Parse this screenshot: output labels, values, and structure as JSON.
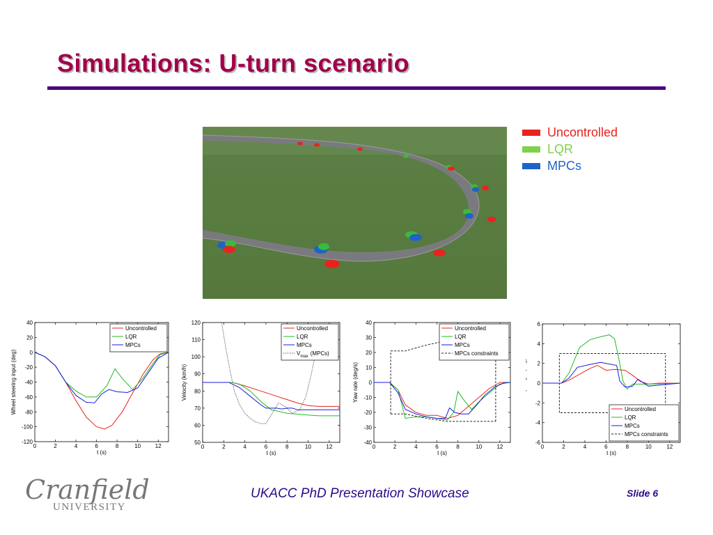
{
  "slide": {
    "title": "Simulations: U-turn scenario",
    "footer_text": "UKACC PhD Presentation Showcase",
    "slide_number": "Slide 6",
    "logo_text": "Cranfield",
    "logo_subtext": "UNIVERSITY",
    "title_color": "#a0004a",
    "rule_color": "#4c0080"
  },
  "sim_legend": [
    {
      "label": "Uncontrolled",
      "color": "#e8231e"
    },
    {
      "label": "LQR",
      "color": "#7fd14a"
    },
    {
      "label": "MPCs",
      "color": "#1e63c8"
    }
  ],
  "chart_data": [
    {
      "type": "line",
      "xlabel": "t (s)",
      "ylabel": "Wheel steering input (deg)",
      "xlim": [
        0,
        13
      ],
      "ylim": [
        -120,
        40
      ],
      "xticks": [
        0,
        2,
        4,
        6,
        8,
        10,
        12
      ],
      "yticks": [
        -120,
        -100,
        -80,
        -60,
        -40,
        -20,
        0,
        20,
        40
      ],
      "legend_position": "top-right",
      "series": [
        {
          "name": "Uncontrolled",
          "color": "#e8231e",
          "style": "solid",
          "x": [
            0,
            1,
            2,
            3,
            4,
            5,
            6,
            6.8,
            7.5,
            8.5,
            9.5,
            10.5,
            11.5,
            12.2,
            13
          ],
          "y": [
            0,
            -6,
            -18,
            -40,
            -65,
            -87,
            -100,
            -103,
            -98,
            -80,
            -55,
            -30,
            -10,
            -2,
            0
          ]
        },
        {
          "name": "LQR",
          "color": "#22bb22",
          "style": "solid",
          "x": [
            0,
            1,
            2,
            3,
            4,
            5,
            6,
            7,
            7.8,
            8.5,
            9.5,
            10.5,
            11.5,
            12.2,
            13
          ],
          "y": [
            0,
            -6,
            -18,
            -40,
            -52,
            -60,
            -60,
            -45,
            -22,
            -35,
            -50,
            -35,
            -15,
            -3,
            0
          ]
        },
        {
          "name": "MPCs",
          "color": "#1a1ae0",
          "style": "solid",
          "x": [
            0,
            1,
            2,
            3,
            4,
            5,
            5.8,
            6.5,
            7.2,
            8,
            9,
            10,
            11,
            12,
            13
          ],
          "y": [
            0,
            -6,
            -18,
            -40,
            -58,
            -67,
            -68,
            -56,
            -50,
            -53,
            -54,
            -48,
            -28,
            -8,
            0
          ]
        }
      ]
    },
    {
      "type": "line",
      "xlabel": "t (s)",
      "ylabel": "Velocity (km/h)",
      "xlim": [
        0,
        13
      ],
      "ylim": [
        50,
        120
      ],
      "xticks": [
        0,
        2,
        4,
        6,
        8,
        10,
        12
      ],
      "yticks": [
        50,
        60,
        70,
        80,
        90,
        100,
        110,
        120
      ],
      "legend_position": "top-right",
      "series": [
        {
          "name": "Uncontrolled",
          "color": "#e8231e",
          "style": "solid",
          "x": [
            0,
            2.8,
            4,
            5,
            6,
            7,
            8,
            9,
            10,
            11,
            12,
            13
          ],
          "y": [
            85,
            85,
            83,
            81,
            79,
            77,
            75,
            73,
            71.5,
            71,
            71,
            71
          ]
        },
        {
          "name": "LQR",
          "color": "#22bb22",
          "style": "solid",
          "x": [
            0,
            2.8,
            3.5,
            4.5,
            5.5,
            6.5,
            7.3,
            8,
            9,
            10,
            11,
            13
          ],
          "y": [
            85,
            85,
            84,
            80,
            74,
            69,
            68,
            67,
            66.5,
            66,
            65.5,
            65.5
          ]
        },
        {
          "name": "MPCs",
          "color": "#1a1ae0",
          "style": "solid",
          "x": [
            0,
            2.5,
            3.5,
            4.5,
            5.5,
            6,
            7,
            7.5,
            8,
            8.5,
            9,
            10,
            11,
            13
          ],
          "y": [
            85,
            85,
            82,
            77,
            72,
            70,
            70,
            69.5,
            70,
            70,
            69,
            69,
            69,
            69
          ]
        },
        {
          "name": "V",
          "legend_sub": "max",
          "legend_suffix": "(MPCs)",
          "color": "#333333",
          "style": "dotted",
          "x": [
            1.8,
            2.2,
            2.6,
            3,
            3.5,
            4,
            4.5,
            5,
            5.5,
            6,
            6.5,
            7.2,
            7.8,
            8.5,
            9.2,
            9.8,
            10.3,
            10.8,
            11.1
          ],
          "y": [
            120,
            105,
            92,
            80,
            72,
            67,
            64,
            62,
            61,
            61,
            66,
            73,
            71,
            67,
            69,
            77,
            90,
            105,
            115
          ]
        }
      ]
    },
    {
      "type": "line",
      "xlabel": "t (s)",
      "ylabel": "Yaw rate (deg/s)",
      "xlim": [
        0,
        13
      ],
      "ylim": [
        -40,
        40
      ],
      "xticks": [
        0,
        2,
        4,
        6,
        8,
        10,
        12
      ],
      "yticks": [
        -40,
        -30,
        -20,
        -10,
        0,
        10,
        20,
        30,
        40
      ],
      "legend_position": "top-right",
      "series": [
        {
          "name": "Uncontrolled",
          "color": "#e8231e",
          "style": "solid",
          "x": [
            0,
            1.5,
            2.3,
            3,
            4,
            5,
            6,
            7,
            8,
            9,
            10,
            11,
            12,
            13
          ],
          "y": [
            0,
            0,
            -5,
            -15,
            -20,
            -22,
            -22,
            -24,
            -22,
            -16,
            -10,
            -4,
            0,
            0
          ]
        },
        {
          "name": "LQR",
          "color": "#22bb22",
          "style": "solid",
          "x": [
            0,
            1.5,
            2.3,
            3,
            4,
            5,
            6,
            7,
            7.6,
            8,
            8.6,
            9.3,
            10,
            11,
            12,
            13
          ],
          "y": [
            0,
            0,
            -5,
            -24,
            -23,
            -23,
            -24,
            -25,
            -20,
            -6,
            -12,
            -18,
            -13,
            -7,
            -1,
            0
          ]
        },
        {
          "name": "MPCs",
          "color": "#1a1ae0",
          "style": "solid",
          "x": [
            0,
            1.5,
            2.3,
            3,
            4,
            5,
            6,
            6.8,
            7.2,
            7.7,
            8.3,
            9,
            9.8,
            10.5,
            11.5,
            12.5,
            13
          ],
          "y": [
            0,
            0,
            -7,
            -18,
            -21,
            -23,
            -24,
            -24,
            -17,
            -20,
            -21,
            -21,
            -15,
            -9,
            -3,
            0,
            0
          ]
        },
        {
          "name": "MPCs constraints",
          "color": "#222222",
          "style": "dashed",
          "x": [
            1.6,
            1.6,
            11.6,
            11.6,
            1.6
          ],
          "y": [
            -21,
            21,
            21,
            -26,
            -21
          ],
          "upper": {
            "x": [
              1.6,
              3,
              5,
              7,
              9,
              10.5,
              11.6
            ],
            "y": [
              21,
              21,
              25,
              28,
              29,
              29,
              29
            ]
          },
          "lower": {
            "x": [
              1.6,
              3,
              5,
              7,
              9,
              10.5,
              11.6
            ],
            "y": [
              -21,
              -21,
              -24,
              -26,
              -26,
              -26,
              -26
            ]
          }
        }
      ]
    },
    {
      "type": "line",
      "xlabel": "t (s)",
      "ylabel": "Sideslip angle (deg)",
      "xlim": [
        0,
        13
      ],
      "ylim": [
        -6,
        6
      ],
      "xticks": [
        0,
        2,
        4,
        6,
        8,
        10,
        12
      ],
      "yticks": [
        -6,
        -4,
        -2,
        0,
        2,
        4,
        6
      ],
      "legend_position": "bottom-right",
      "series": [
        {
          "name": "Uncontrolled",
          "color": "#e8231e",
          "style": "solid",
          "x": [
            0,
            1.8,
            2.5,
            3.5,
            4.5,
            5.2,
            6,
            6.8,
            7.8,
            8.5,
            9.2,
            10,
            11,
            13
          ],
          "y": [
            0,
            0,
            0.3,
            0.9,
            1.5,
            1.8,
            1.3,
            1.4,
            1.3,
            0.8,
            0.2,
            -0.1,
            0,
            0
          ]
        },
        {
          "name": "LQR",
          "color": "#22bb22",
          "style": "solid",
          "x": [
            0,
            1.8,
            2.5,
            3.5,
            4.5,
            5.5,
            6.3,
            6.8,
            7.2,
            7.6,
            8,
            8.5,
            10,
            13
          ],
          "y": [
            0,
            0,
            1,
            3.6,
            4.4,
            4.7,
            4.9,
            4.5,
            2.5,
            0.2,
            -0.6,
            -0.1,
            -0.1,
            0
          ]
        },
        {
          "name": "MPCs",
          "color": "#1a1ae0",
          "style": "solid",
          "x": [
            0,
            1.8,
            2.5,
            3.3,
            4.5,
            5.5,
            6.5,
            7,
            7.3,
            7.8,
            8.5,
            9,
            10,
            11,
            13
          ],
          "y": [
            0,
            0,
            0.5,
            1.6,
            1.9,
            2.1,
            1.9,
            1.8,
            0.2,
            -0.4,
            -0.3,
            0.4,
            -0.3,
            -0.2,
            0
          ]
        },
        {
          "name": "MPCs constraints",
          "color": "#222222",
          "style": "dashed",
          "x": [
            1.6,
            1.6,
            11.6,
            11.6,
            1.6
          ],
          "y": [
            -3,
            3,
            3,
            -3,
            -3
          ]
        }
      ]
    }
  ]
}
